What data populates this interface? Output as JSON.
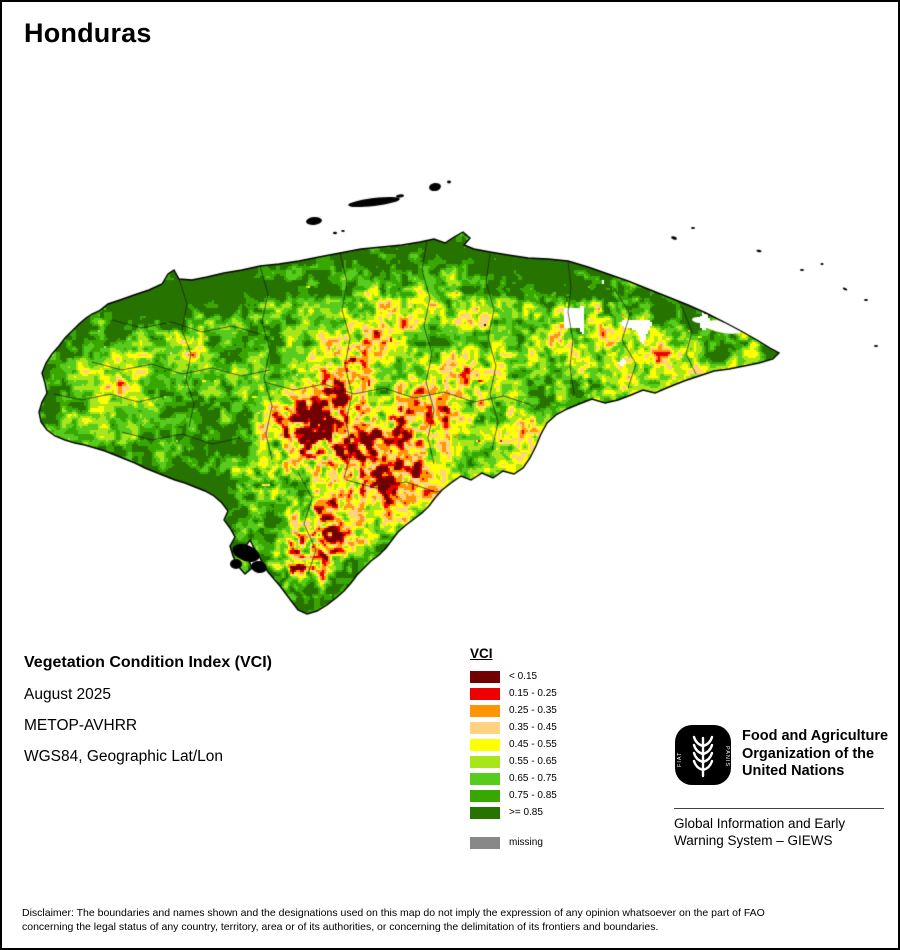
{
  "page": {
    "title": "Honduras"
  },
  "map": {
    "country": "Honduras",
    "outline_color": "#000000"
  },
  "info": {
    "index_title": "Vegetation Condition Index (VCI)",
    "date": "August 2025",
    "sensor": "METOP-AVHRR",
    "projection": "WGS84, Geographic Lat/Lon"
  },
  "legend": {
    "heading": "VCI",
    "classes": [
      {
        "label": "< 0.15",
        "color": "#730000"
      },
      {
        "label": "0.15 - 0.25",
        "color": "#EE0000"
      },
      {
        "label": "0.25 - 0.35",
        "color": "#FF9500"
      },
      {
        "label": "0.35 - 0.45",
        "color": "#FFD37F"
      },
      {
        "label": "0.45 - 0.55",
        "color": "#FFFF00"
      },
      {
        "label": "0.55 - 0.65",
        "color": "#A8E61A"
      },
      {
        "label": "0.65 - 0.75",
        "color": "#58CC1E"
      },
      {
        "label": "0.75 - 0.85",
        "color": "#38A800"
      },
      {
        "label": ">= 0.85",
        "color": "#267300"
      }
    ],
    "missing": {
      "label": "missing",
      "color": "#888888"
    }
  },
  "org": {
    "fao_name_lines": [
      "Food and Agriculture",
      "Organization of the",
      "United Nations"
    ],
    "fao_motto": "FIAT PANIS",
    "giews_lines": [
      "Global Information and Early",
      "Warning System – GIEWS"
    ]
  },
  "disclaimer": {
    "lines": [
      "Disclaimer: The boundaries and names shown and the designations used on this map do not imply the expression of any opinion whatsoever on the part of FAO",
      "concerning the legal status of any country, territory, area or of its authorities, or concerning the delimitation of its frontiers and boundaries."
    ]
  }
}
